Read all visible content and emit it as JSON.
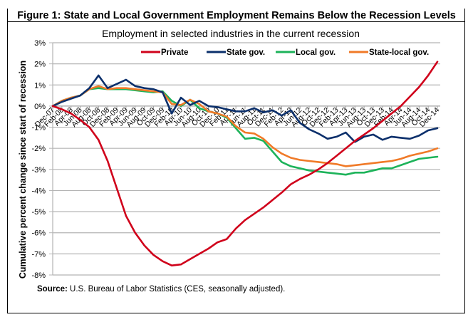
{
  "figure": {
    "title": "Figure 1: State and Local Government Employment Remains Below the Recession Levels",
    "source_label": "Source:",
    "source_text": " U.S. Bureau of Labor Statistics (CES, seasonally adjusted)."
  },
  "chart_data": {
    "type": "line",
    "title": "Employment in selected industries in the current recession",
    "xlabel": "",
    "ylabel": "Cumulative percent  change since start of recession",
    "ylim": [
      -8,
      3
    ],
    "yticks": [
      "3%",
      "2%",
      "1%",
      "0%",
      "-1%",
      "-2%",
      "-3%",
      "-4%",
      "-5%",
      "-6%",
      "-7%",
      "-8%"
    ],
    "grid": true,
    "legend_position": "top",
    "x": [
      "Dec-07",
      "Feb-08",
      "Apr-08",
      "Jun-08",
      "Aug-08",
      "Oct-08",
      "Dec-08",
      "Feb-09",
      "Apr-09",
      "Jun-09",
      "Aug-09",
      "Oct-09",
      "Dec-09",
      "Feb-10",
      "Apr-10",
      "Jun-10",
      "Aug-10",
      "Oct-10",
      "Dec-10",
      "Feb-11",
      "Apr-11",
      "Jun-11",
      "Aug-11",
      "Oct-11",
      "Dec-11",
      "Feb-12",
      "Apr-12",
      "Jun-12",
      "Aug-12",
      "Oct-12",
      "Dec-12",
      "Feb-13",
      "Apr-13",
      "Jun-13",
      "Aug-13",
      "Oct-13",
      "Dec-13",
      "Feb-14",
      "Apr-14",
      "Jun-14",
      "Aug-14",
      "Oct-14",
      "Dec-14"
    ],
    "series": [
      {
        "name": "Private",
        "color": "#d0021b",
        "values": [
          0.0,
          -0.15,
          -0.35,
          -0.65,
          -1.0,
          -1.6,
          -2.6,
          -3.9,
          -5.2,
          -6.0,
          -6.6,
          -7.05,
          -7.35,
          -7.55,
          -7.5,
          -7.25,
          -7.0,
          -6.75,
          -6.45,
          -6.3,
          -5.8,
          -5.4,
          -5.1,
          -4.8,
          -4.45,
          -4.1,
          -3.7,
          -3.45,
          -3.25,
          -3.0,
          -2.7,
          -2.35,
          -2.0,
          -1.65,
          -1.35,
          -1.05,
          -0.7,
          -0.35,
          0.0,
          0.45,
          0.9,
          1.45,
          2.1
        ]
      },
      {
        "name": "State gov.",
        "color": "#0b2f6b",
        "values": [
          0.0,
          0.2,
          0.35,
          0.5,
          0.85,
          1.45,
          0.85,
          1.05,
          1.25,
          0.95,
          0.85,
          0.8,
          0.65,
          -0.35,
          0.4,
          0.05,
          0.25,
          0.0,
          -0.05,
          -0.15,
          -0.25,
          -0.25,
          -0.1,
          -0.3,
          -0.2,
          -0.45,
          -0.2,
          -0.8,
          -1.1,
          -1.3,
          -1.55,
          -1.45,
          -1.25,
          -1.7,
          -1.45,
          -1.35,
          -1.6,
          -1.45,
          -1.5,
          -1.55,
          -1.4,
          -1.15,
          -1.05
        ]
      },
      {
        "name": "Local gov.",
        "color": "#1db35a",
        "values": [
          0.0,
          0.25,
          0.4,
          0.5,
          0.8,
          0.85,
          0.8,
          0.8,
          0.8,
          0.75,
          0.7,
          0.65,
          0.7,
          0.25,
          0.0,
          0.3,
          -0.1,
          -0.25,
          -0.35,
          -0.55,
          -1.05,
          -1.55,
          -1.5,
          -1.65,
          -2.15,
          -2.65,
          -2.85,
          -2.95,
          -3.05,
          -3.1,
          -3.15,
          -3.2,
          -3.25,
          -3.15,
          -3.15,
          -3.05,
          -2.95,
          -2.95,
          -2.8,
          -2.65,
          -2.5,
          -2.45,
          -2.4
        ]
      },
      {
        "name": "State-local gov.",
        "color": "#f07a28",
        "values": [
          0.0,
          0.25,
          0.4,
          0.5,
          0.8,
          0.95,
          0.8,
          0.85,
          0.85,
          0.8,
          0.75,
          0.7,
          0.65,
          0.1,
          0.05,
          0.3,
          0.1,
          -0.25,
          -0.35,
          -0.5,
          -0.95,
          -1.25,
          -1.3,
          -1.55,
          -1.95,
          -2.25,
          -2.45,
          -2.55,
          -2.6,
          -2.65,
          -2.7,
          -2.75,
          -2.85,
          -2.8,
          -2.75,
          -2.7,
          -2.65,
          -2.6,
          -2.5,
          -2.35,
          -2.25,
          -2.15,
          -2.0
        ]
      }
    ]
  }
}
